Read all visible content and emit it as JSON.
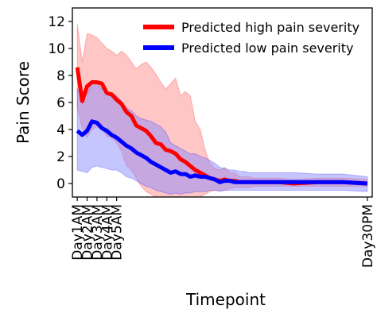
{
  "chart_data": {
    "type": "line",
    "title": "",
    "xlabel": "Timepoint",
    "ylabel": "Pain Score",
    "ylim": [
      -1,
      13
    ],
    "yticks": [
      0,
      2,
      4,
      6,
      8,
      10,
      12
    ],
    "xticks": [
      {
        "label": "Day1AM",
        "t": 1
      },
      {
        "label": "Day2AM",
        "t": 3
      },
      {
        "label": "Day3AM",
        "t": 5
      },
      {
        "label": "Day4AM",
        "t": 7
      },
      {
        "label": "Day5AM",
        "t": 9
      },
      {
        "label": "Day30PM",
        "t": 60
      }
    ],
    "xlim": [
      0,
      61
    ],
    "legend_position": "top-right",
    "series": [
      {
        "name": "Predicted high pain severity",
        "color": "#ff0000",
        "band_color": "#ff8080",
        "t": [
          1,
          2,
          3,
          4,
          5,
          6,
          7,
          8,
          9,
          10,
          11,
          12,
          13,
          14,
          15,
          16,
          17,
          18,
          19,
          20,
          21,
          22,
          23,
          24,
          25,
          26,
          27,
          28,
          29,
          30,
          31,
          32,
          33,
          34,
          35,
          36,
          37,
          38,
          39,
          40,
          42,
          45,
          50,
          55,
          60
        ],
        "mean": [
          8.6,
          6.1,
          7.2,
          7.5,
          7.5,
          7.4,
          6.7,
          6.6,
          6.2,
          5.9,
          5.3,
          5.0,
          4.3,
          4.1,
          3.9,
          3.5,
          3.0,
          2.9,
          2.5,
          2.4,
          2.2,
          1.8,
          1.6,
          1.3,
          1.0,
          0.8,
          0.6,
          0.4,
          0.3,
          0.2,
          0.3,
          0.2,
          0.2,
          0.1,
          0.1,
          0.1,
          0.1,
          0.1,
          0.1,
          0.1,
          0.1,
          0.0,
          0.1,
          0.1,
          0.0
        ],
        "upper": [
          11.8,
          9.0,
          11.1,
          11.0,
          10.8,
          10.4,
          10.0,
          9.8,
          9.5,
          9.8,
          9.5,
          9.0,
          8.5,
          8.8,
          9.0,
          8.6,
          8.1,
          7.5,
          7.0,
          7.4,
          7.8,
          6.5,
          6.8,
          6.5,
          4.6,
          4.0,
          2.5,
          1.5,
          1.1,
          1.0,
          1.2,
          0.8,
          0.8,
          0.5,
          0.5,
          0.5,
          0.4,
          0.4,
          0.4,
          0.4,
          0.4,
          0.3,
          0.4,
          0.4,
          0.3
        ],
        "lower": [
          5.6,
          4.1,
          3.4,
          4.0,
          4.2,
          4.0,
          3.5,
          3.4,
          3.0,
          2.4,
          1.3,
          1.0,
          0.4,
          -0.2,
          -0.6,
          -0.8,
          -1.0,
          -1.0,
          -1.0,
          -1.0,
          -1.0,
          -1.0,
          -1.0,
          -1.0,
          -1.0,
          -1.0,
          -0.8,
          -0.6,
          -0.5,
          -0.5,
          -0.5,
          -0.4,
          -0.3,
          -0.3,
          -0.3,
          -0.3,
          -0.2,
          -0.2,
          -0.2,
          -0.2,
          -0.2,
          -0.2,
          -0.2,
          -0.2,
          -0.2
        ]
      },
      {
        "name": "Predicted low pain severity",
        "color": "#0000ff",
        "band_color": "#8080ff",
        "t": [
          1,
          2,
          3,
          4,
          5,
          6,
          7,
          8,
          9,
          10,
          11,
          12,
          13,
          14,
          15,
          16,
          17,
          18,
          19,
          20,
          21,
          22,
          23,
          24,
          25,
          26,
          27,
          28,
          29,
          30,
          31,
          32,
          33,
          34,
          35,
          36,
          37,
          38,
          39,
          40,
          42,
          45,
          50,
          55,
          60
        ],
        "mean": [
          3.9,
          3.6,
          3.9,
          4.6,
          4.5,
          4.1,
          3.9,
          3.6,
          3.4,
          3.1,
          2.8,
          2.6,
          2.3,
          2.1,
          1.9,
          1.6,
          1.4,
          1.2,
          1.0,
          0.8,
          0.9,
          0.7,
          0.7,
          0.5,
          0.6,
          0.5,
          0.5,
          0.4,
          0.3,
          0.1,
          0.2,
          0.2,
          0.1,
          0.1,
          0.1,
          0.1,
          0.1,
          0.1,
          0.1,
          0.1,
          0.1,
          0.1,
          0.1,
          0.1,
          0.0
        ],
        "upper": [
          7.0,
          6.5,
          6.6,
          7.5,
          7.4,
          7.0,
          6.9,
          6.6,
          6.5,
          6.1,
          5.6,
          5.4,
          5.0,
          4.8,
          4.7,
          4.6,
          4.4,
          4.2,
          3.8,
          3.0,
          2.8,
          2.6,
          2.4,
          2.2,
          2.2,
          2.0,
          1.9,
          1.7,
          1.5,
          1.2,
          1.1,
          1.0,
          1.0,
          0.9,
          0.9,
          0.8,
          0.8,
          0.8,
          0.8,
          0.8,
          0.8,
          0.8,
          0.7,
          0.7,
          0.5
        ],
        "lower": [
          1.0,
          0.9,
          0.8,
          1.2,
          1.3,
          1.2,
          1.1,
          1.0,
          1.0,
          0.8,
          0.5,
          0.4,
          0.2,
          0.0,
          -0.2,
          -0.3,
          -0.5,
          -0.6,
          -0.7,
          -0.8,
          -0.7,
          -0.8,
          -0.7,
          -0.7,
          -0.6,
          -0.6,
          -0.6,
          -0.5,
          -0.5,
          -0.6,
          -0.5,
          -0.5,
          -0.5,
          -0.5,
          -0.5,
          -0.5,
          -0.5,
          -0.5,
          -0.5,
          -0.5,
          -0.5,
          -0.5,
          -0.5,
          -0.5,
          -0.6
        ]
      }
    ]
  }
}
